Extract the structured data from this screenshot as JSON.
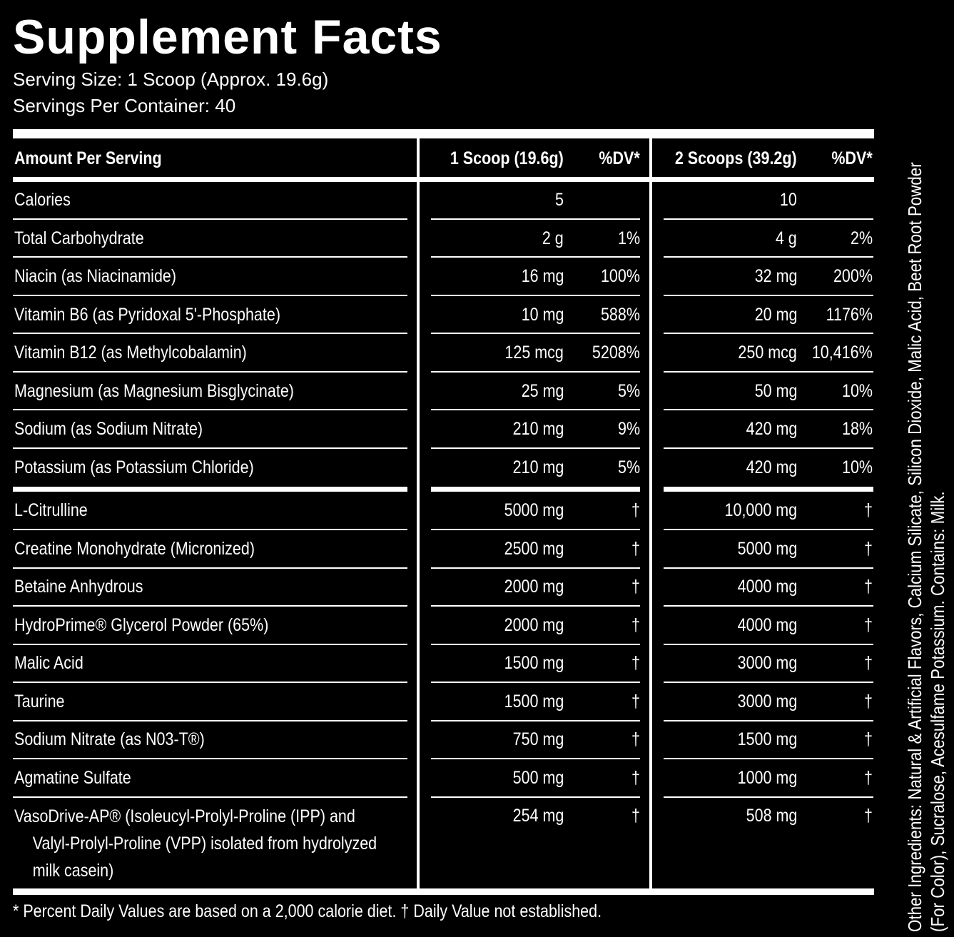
{
  "title": "Supplement Facts",
  "serving_size": "Serving Size: 1 Scoop (Approx. 19.6g)",
  "servings_per_container": "Servings Per Container: 40",
  "header": {
    "amount": "Amount Per Serving",
    "col1": "1 Scoop (19.6g)",
    "dv1": "%DV*",
    "col2": "2 Scoops (39.2g)",
    "dv2": "%DV*"
  },
  "rows": [
    {
      "name": "Calories",
      "a1": "5",
      "d1": "",
      "a2": "10",
      "d2": ""
    },
    {
      "name": "Total Carbohydrate",
      "a1": "2 g",
      "d1": "1%",
      "a2": "4 g",
      "d2": "2%"
    },
    {
      "name": "Niacin (as Niacinamide)",
      "a1": "16 mg",
      "d1": "100%",
      "a2": "32 mg",
      "d2": "200%"
    },
    {
      "name": "Vitamin B6 (as Pyridoxal 5'-Phosphate)",
      "a1": "10 mg",
      "d1": "588%",
      "a2": "20 mg",
      "d2": "1176%"
    },
    {
      "name": "Vitamin B12 (as Methylcobalamin)",
      "a1": "125 mcg",
      "d1": "5208%",
      "a2": "250 mcg",
      "d2": "10,416%"
    },
    {
      "name": "Magnesium (as Magnesium Bisglycinate)",
      "a1": "25 mg",
      "d1": "5%",
      "a2": "50 mg",
      "d2": "10%"
    },
    {
      "name": "Sodium (as Sodium Nitrate)",
      "a1": "210 mg",
      "d1": "9%",
      "a2": "420 mg",
      "d2": "18%"
    },
    {
      "name": "Potassium (as Potassium Chloride)",
      "a1": "210 mg",
      "d1": "5%",
      "a2": "420 mg",
      "d2": "10%"
    },
    {
      "name": "L-Citrulline",
      "a1": "5000 mg",
      "d1": "†",
      "a2": "10,000 mg",
      "d2": "†"
    },
    {
      "name": "Creatine Monohydrate (Micronized)",
      "a1": "2500 mg",
      "d1": "†",
      "a2": "5000 mg",
      "d2": "†"
    },
    {
      "name": "Betaine Anhydrous",
      "a1": "2000 mg",
      "d1": "†",
      "a2": "4000 mg",
      "d2": "†"
    },
    {
      "name": "HydroPrime® Glycerol Powder (65%)",
      "a1": "2000 mg",
      "d1": "†",
      "a2": "4000 mg",
      "d2": "†"
    },
    {
      "name": "Malic Acid",
      "a1": "1500 mg",
      "d1": "†",
      "a2": "3000 mg",
      "d2": "†"
    },
    {
      "name": "Taurine",
      "a1": "1500 mg",
      "d1": "†",
      "a2": "3000 mg",
      "d2": "†"
    },
    {
      "name": "Sodium Nitrate (as N03-T®)",
      "a1": "750 mg",
      "d1": "†",
      "a2": "1500 mg",
      "d2": "†"
    },
    {
      "name": "Agmatine Sulfate",
      "a1": "500 mg",
      "d1": "†",
      "a2": "1000 mg",
      "d2": "†"
    },
    {
      "name": "VasoDrive-AP® (Isoleucyl-Prolyl-Proline (IPP) and",
      "name_line2": "Valyl-Prolyl-Proline (VPP) isolated from hydrolyzed",
      "name_line3": "milk casein)",
      "a1": "254 mg",
      "d1": "†",
      "a2": "508 mg",
      "d2": "†"
    }
  ],
  "footnote": "* Percent Daily Values are based on a 2,000 calorie diet. † Daily Value not established.",
  "other_ingredients": {
    "line1": "Other Ingredients: Natural & Artificial Flavors, Calcium Silicate, Silicon Dioxide, Malic Acid, Beet Root Powder",
    "line2": "(For Color), Sucralose, Acesulfame Potassium. Contains: Milk."
  }
}
